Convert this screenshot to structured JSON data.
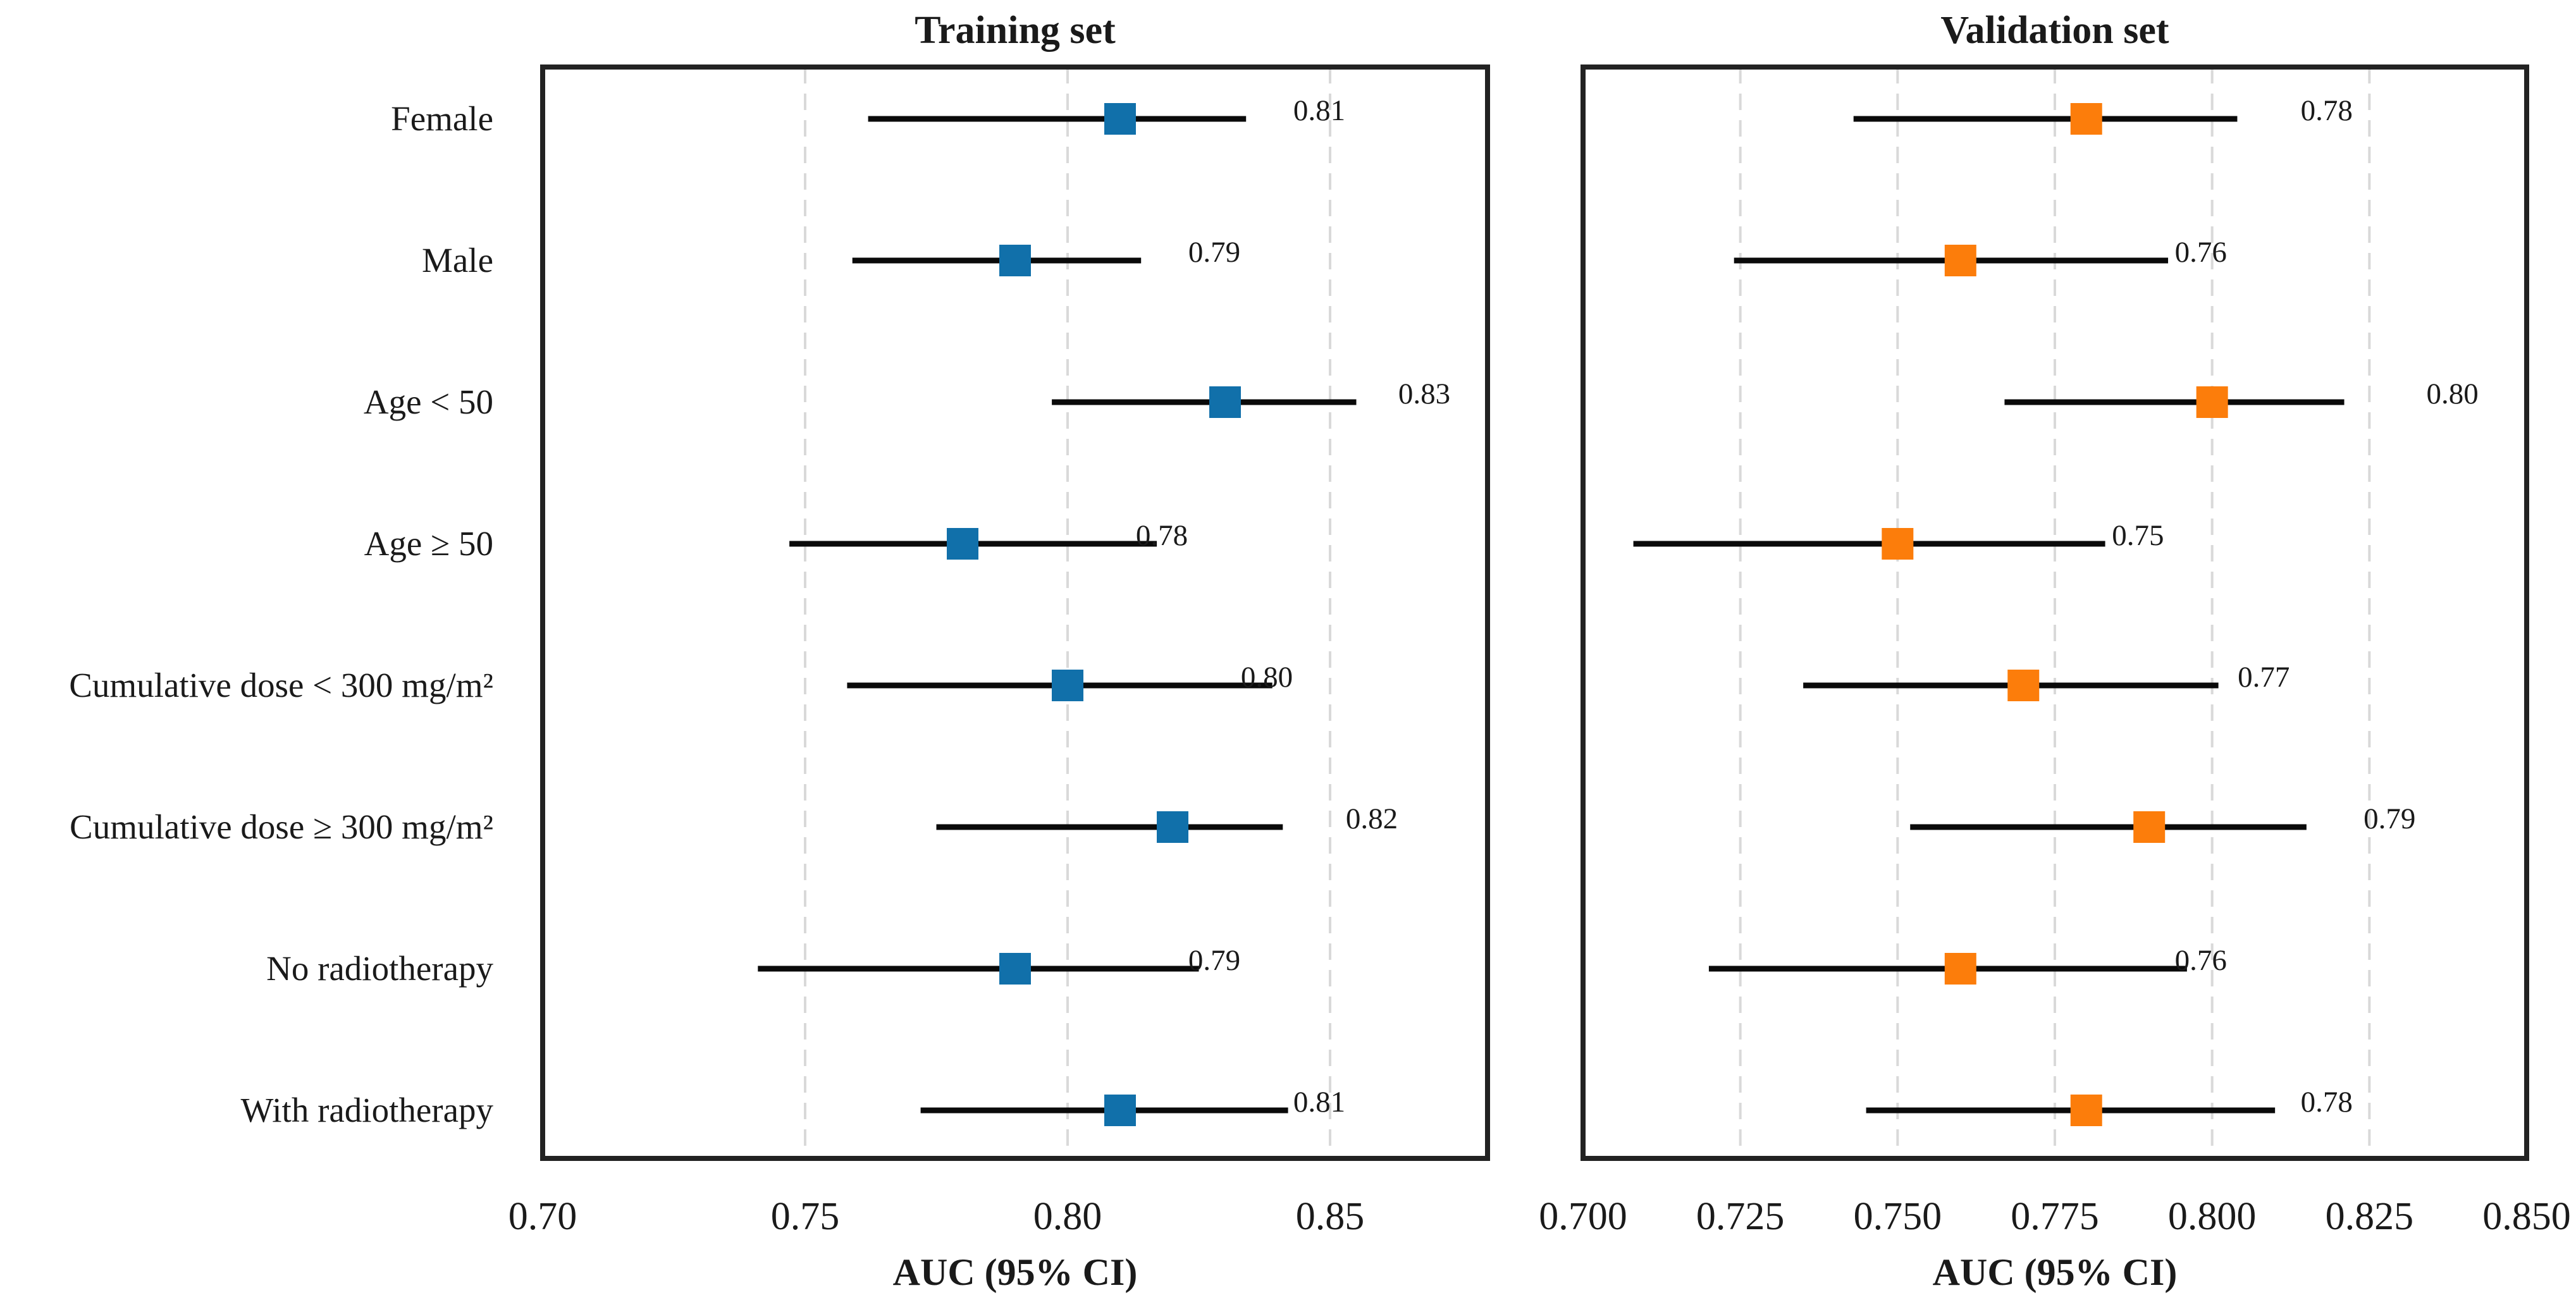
{
  "chart_data": [
    {
      "type": "forest",
      "title": "Training set",
      "xlabel": "AUC (95% CI)",
      "xlim": [
        0.7,
        0.88
      ],
      "xticks": [
        0.7,
        0.75,
        0.8,
        0.85
      ],
      "tick_labels": [
        "0.70",
        "0.75",
        "0.80",
        "0.85"
      ],
      "grid": true,
      "marker_color": "#1170aa",
      "categories": [
        "Female",
        "Male",
        "Age < 50",
        "Age ≥ 50",
        "Cumulative dose < 300 mg/m²",
        "Cumulative dose ≥ 300 mg/m²",
        "No radiotherapy",
        "With radiotherapy"
      ],
      "auc": [
        0.81,
        0.79,
        0.83,
        0.78,
        0.8,
        0.82,
        0.79,
        0.81
      ],
      "ci_lower": [
        0.762,
        0.759,
        0.797,
        0.747,
        0.758,
        0.775,
        0.741,
        0.772
      ],
      "ci_upper": [
        0.834,
        0.814,
        0.855,
        0.817,
        0.839,
        0.841,
        0.825,
        0.842
      ],
      "value_labels": [
        "0.81",
        "0.79",
        "0.83",
        "0.78",
        "0.80",
        "0.82",
        "0.79",
        "0.81"
      ]
    },
    {
      "type": "forest",
      "title": "Validation set",
      "xlabel": "AUC (95% CI)",
      "xlim": [
        0.7,
        0.85
      ],
      "xticks": [
        0.7,
        0.725,
        0.75,
        0.775,
        0.8,
        0.825,
        0.85
      ],
      "tick_labels": [
        "0.700",
        "0.725",
        "0.750",
        "0.775",
        "0.800",
        "0.825",
        "0.850"
      ],
      "grid": true,
      "marker_color": "#fc7d0b",
      "categories": [
        "Female",
        "Male",
        "Age < 50",
        "Age ≥ 50",
        "Cumulative dose < 300 mg/m²",
        "Cumulative dose ≥ 300 mg/m²",
        "No radiotherapy",
        "With radiotherapy"
      ],
      "auc": [
        0.78,
        0.76,
        0.8,
        0.75,
        0.77,
        0.79,
        0.76,
        0.78
      ],
      "ci_lower": [
        0.743,
        0.724,
        0.767,
        0.708,
        0.735,
        0.752,
        0.72,
        0.745
      ],
      "ci_upper": [
        0.804,
        0.793,
        0.821,
        0.783,
        0.801,
        0.815,
        0.796,
        0.81
      ],
      "value_labels": [
        "0.78",
        "0.76",
        "0.80",
        "0.75",
        "0.77",
        "0.79",
        "0.76",
        "0.78"
      ]
    }
  ]
}
